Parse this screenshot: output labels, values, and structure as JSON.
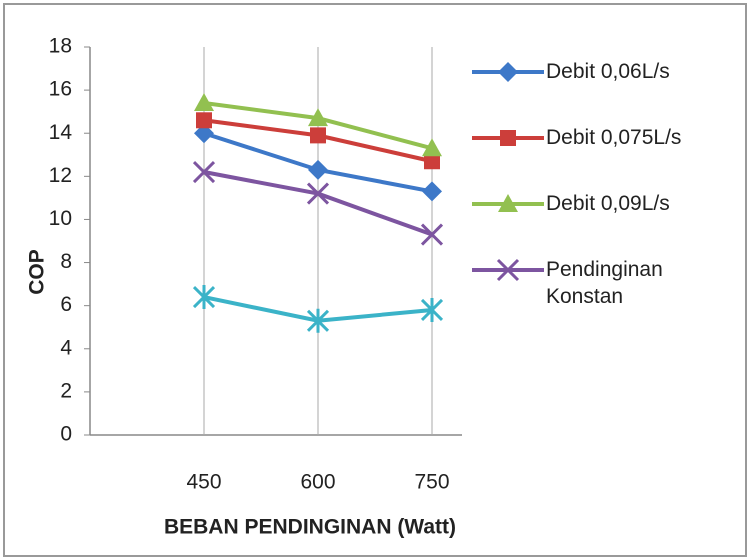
{
  "chart_data": {
    "type": "line",
    "x_label": "BEBAN PENDINGINAN (Watt)",
    "y_label": "COP",
    "categories": [
      null,
      450,
      600,
      750
    ],
    "series": [
      {
        "name": "Debit 0,06L/s",
        "color": "#3d78c8",
        "marker": "diamond",
        "values": [
          null,
          14.0,
          12.3,
          11.3
        ]
      },
      {
        "name": "Debit 0,075L/s",
        "color": "#cc3e3a",
        "marker": "square",
        "values": [
          null,
          14.6,
          13.9,
          12.7
        ]
      },
      {
        "name": "Debit 0,09L/s",
        "color": "#92c050",
        "marker": "triangle",
        "values": [
          null,
          15.4,
          14.7,
          13.3
        ]
      },
      {
        "name": "Pendinginan Konstan",
        "color": "#7d55a0",
        "marker": "x",
        "values": [
          null,
          12.2,
          11.2,
          9.3
        ]
      },
      {
        "color": "#3bb3c8",
        "marker": "star",
        "values": [
          null,
          6.4,
          5.3,
          5.8
        ]
      }
    ],
    "ylim": [
      0,
      18
    ],
    "yticks": [
      0,
      2,
      4,
      6,
      8,
      10,
      12,
      14,
      16,
      18
    ],
    "grid": "x"
  }
}
